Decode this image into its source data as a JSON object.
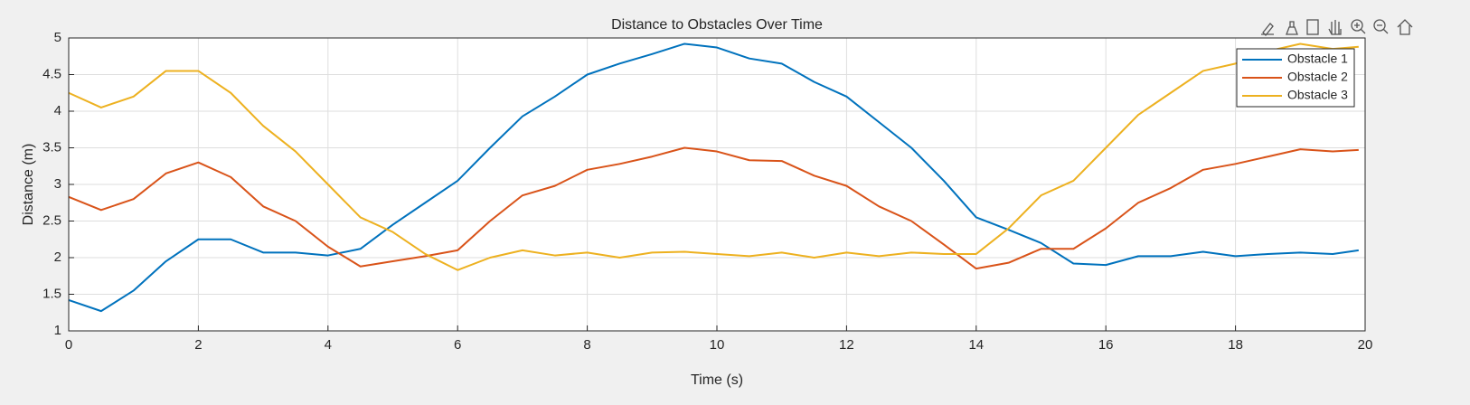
{
  "chart_data": {
    "type": "line",
    "title": "Distance to Obstacles Over Time",
    "xlabel": "Time (s)",
    "ylabel": "Distance (m)",
    "x": [
      0,
      0.5,
      1,
      1.5,
      2,
      2.5,
      3,
      3.5,
      4,
      4.5,
      5,
      5.5,
      6,
      6.5,
      7,
      7.5,
      8,
      8.5,
      9,
      9.5,
      10,
      10.5,
      11,
      11.5,
      12,
      12.5,
      13,
      13.5,
      14,
      14.5,
      15,
      15.5,
      16,
      16.5,
      17,
      17.5,
      18,
      18.5,
      19,
      19.5,
      19.9
    ],
    "series": [
      {
        "name": "Obstacle 1",
        "color": "#0072BD",
        "values": [
          1.42,
          1.27,
          1.55,
          1.95,
          2.25,
          2.25,
          2.07,
          2.07,
          2.03,
          2.12,
          2.45,
          2.75,
          3.05,
          3.5,
          3.93,
          4.2,
          4.5,
          4.65,
          4.78,
          4.92,
          4.87,
          4.72,
          4.65,
          4.4,
          4.2,
          3.85,
          3.5,
          3.05,
          2.55,
          2.38,
          2.2,
          1.92,
          1.9,
          2.02,
          2.02,
          2.08,
          2.02,
          2.05,
          2.07,
          2.05,
          2.1
        ]
      },
      {
        "name": "Obstacle 2",
        "color": "#D95319",
        "values": [
          2.83,
          2.65,
          2.8,
          3.15,
          3.3,
          3.1,
          2.7,
          2.5,
          2.15,
          1.88,
          1.95,
          2.02,
          2.1,
          2.5,
          2.85,
          2.98,
          3.2,
          3.28,
          3.38,
          3.5,
          3.45,
          3.33,
          3.32,
          3.12,
          2.98,
          2.7,
          2.5,
          2.18,
          1.85,
          1.93,
          2.12,
          2.12,
          2.4,
          2.75,
          2.95,
          3.2,
          3.28,
          3.38,
          3.48,
          3.45,
          3.47
        ]
      },
      {
        "name": "Obstacle 3",
        "color": "#EDB120",
        "values": [
          4.25,
          4.05,
          4.2,
          4.55,
          4.55,
          4.25,
          3.8,
          3.45,
          3.0,
          2.55,
          2.35,
          2.05,
          1.83,
          2.0,
          2.1,
          2.03,
          2.07,
          2.0,
          2.07,
          2.08,
          2.05,
          2.02,
          2.07,
          2.0,
          2.07,
          2.02,
          2.07,
          2.05,
          2.05,
          2.4,
          2.85,
          3.05,
          3.5,
          3.95,
          4.25,
          4.55,
          4.65,
          4.82,
          4.92,
          4.85,
          4.88
        ]
      }
    ],
    "xlim": [
      0,
      20
    ],
    "xticks": [
      0,
      2,
      4,
      6,
      8,
      10,
      12,
      14,
      16,
      18,
      20
    ],
    "ylim": [
      1,
      5
    ],
    "yticks": [
      1,
      1.5,
      2,
      2.5,
      3,
      3.5,
      4,
      4.5,
      5
    ],
    "grid": true,
    "legend": "northeast"
  }
}
